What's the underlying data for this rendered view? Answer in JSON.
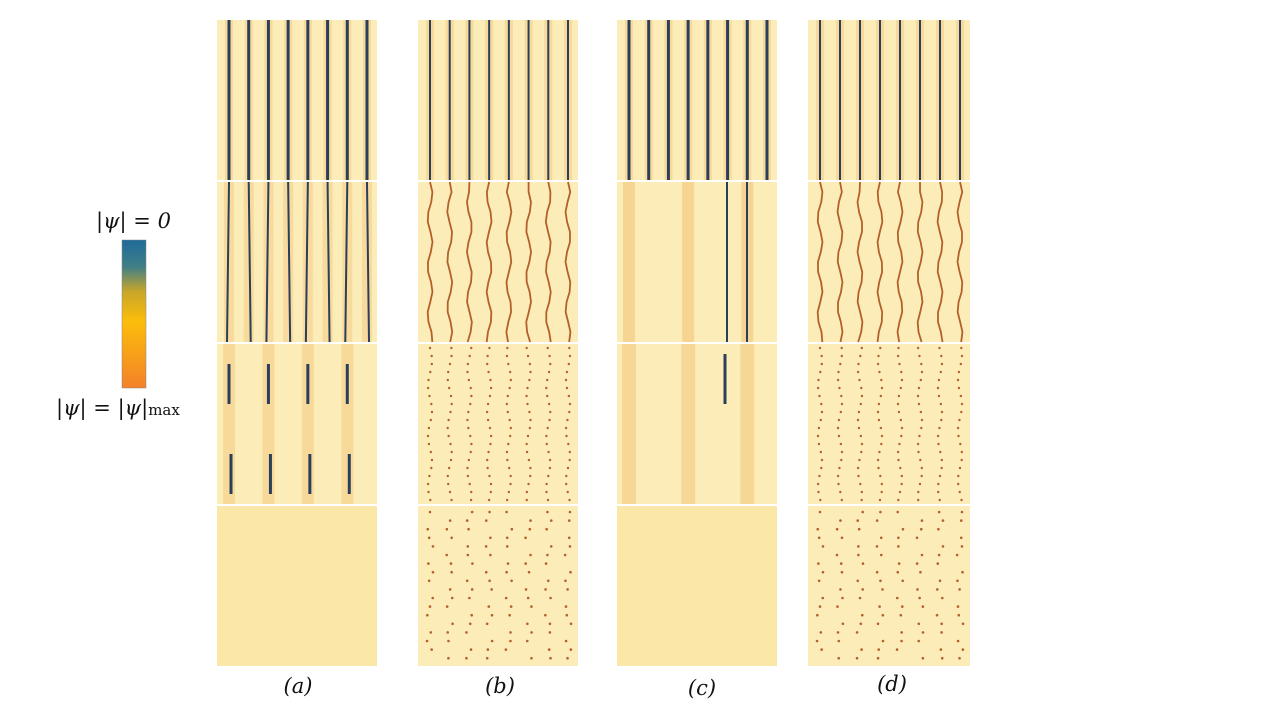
{
  "colorbar": {
    "top_label": "|ψ| = 0",
    "bottom_label_main": "|ψ| = |ψ|",
    "bottom_label_sub": "max",
    "colors": [
      "#1f6a9a",
      "#5f8c6b",
      "#f7b90e",
      "#f58324"
    ]
  },
  "columns": [
    {
      "label": "(a)"
    },
    {
      "label": "(b)"
    },
    {
      "label": "(c)"
    },
    {
      "label": "(d)"
    }
  ],
  "panel_colors": {
    "background": "#fcecb8",
    "uniform": "#fbe7a8",
    "vortex_dark": "#2a3f5c",
    "vortex_core": "#b5602a",
    "shade": "#f2c67a"
  }
}
